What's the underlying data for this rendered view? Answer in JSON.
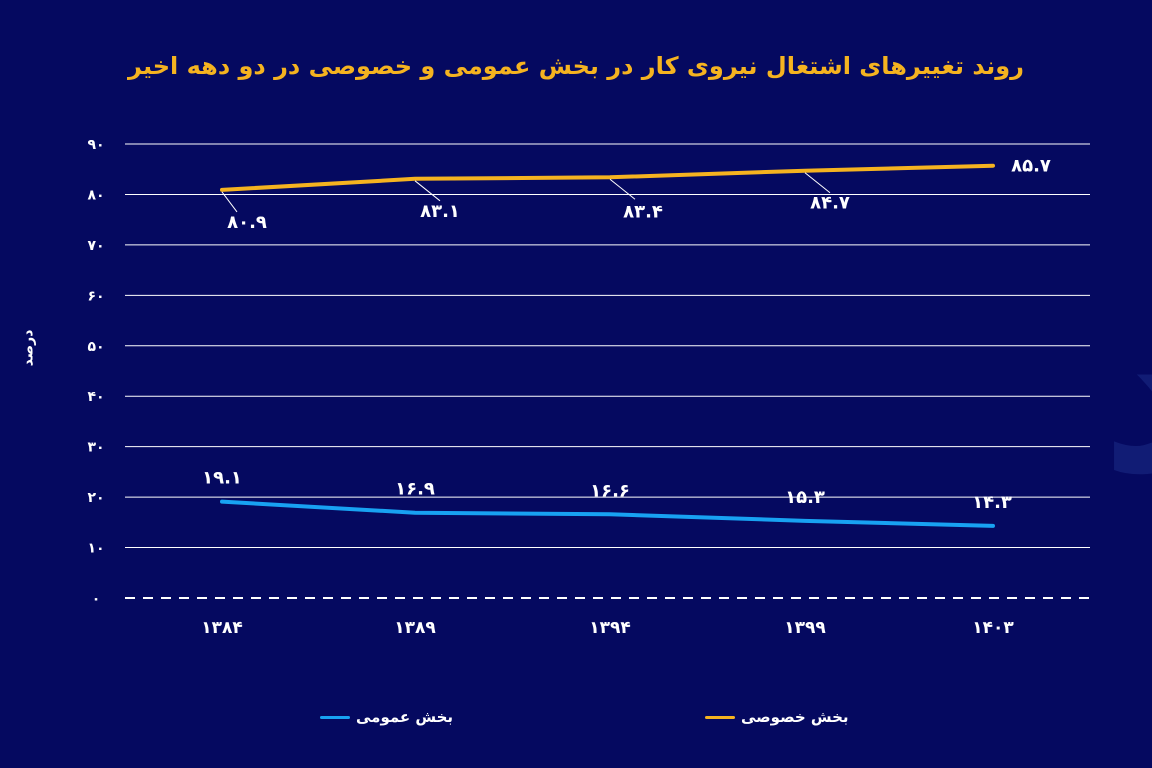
{
  "watermark": "دنیای اقتصاد",
  "colors": {
    "background": "#050960",
    "private": "#f5b320",
    "public": "#18a2f2",
    "grid": "#ffffff"
  },
  "chart_data": {
    "type": "line",
    "title": "روند تغییرهای اشتغال نیروی کار در بخش عمومی و خصوصی در دو دهه اخیر",
    "ylabel": "درصد",
    "xlabel": "",
    "categories": [
      "۱۳۸۴",
      "۱۳۸۹",
      "۱۳۹۴",
      "۱۳۹۹",
      "۱۴۰۳"
    ],
    "yticks": [
      "۰",
      "۱۰",
      "۲۰",
      "۳۰",
      "۴۰",
      "۵۰",
      "۶۰",
      "۷۰",
      "۸۰",
      "۹۰"
    ],
    "ylim": [
      0,
      90
    ],
    "grid": true,
    "legend_position": "bottom",
    "series": [
      {
        "name": "بخش خصوصی",
        "color": "#f5b320",
        "values": [
          80.9,
          83.1,
          83.4,
          84.7,
          85.7
        ],
        "labels": [
          "۸۰.۹",
          "۸۳.۱",
          "۸۳.۴",
          "۸۴.۷",
          "۸۵.۷"
        ]
      },
      {
        "name": "بخش عمومی",
        "color": "#18a2f2",
        "values": [
          19.1,
          16.9,
          16.6,
          15.3,
          14.3
        ],
        "labels": [
          "۱۹.۱",
          "۱۶.۹",
          "۱۶.۶",
          "۱۵.۳",
          "۱۴.۳"
        ]
      }
    ]
  }
}
